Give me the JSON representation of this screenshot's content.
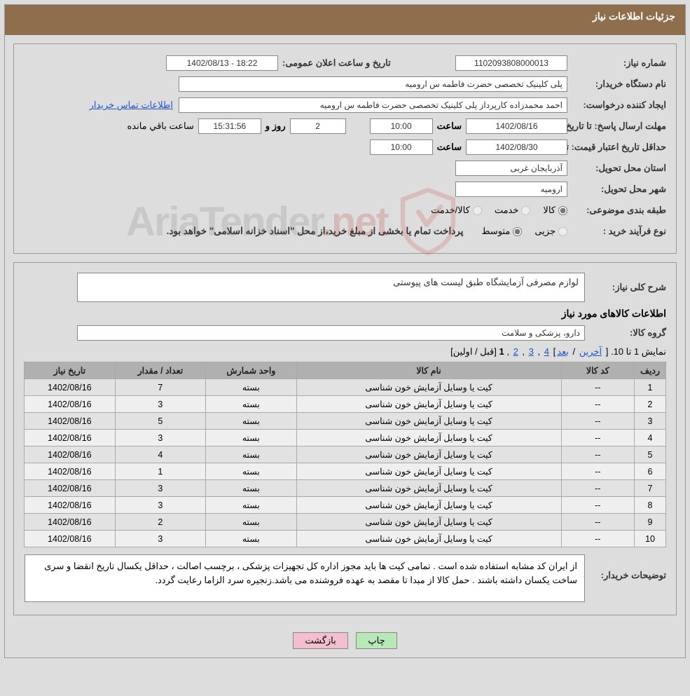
{
  "colors": {
    "header_bg": "#8f6e4d",
    "page_bg": "#dddddd",
    "border": "#999999",
    "input_bg": "#ffffff",
    "link": "#2255cc",
    "th_bg": "#b0b0b0",
    "row_even": "#efefef",
    "row_odd": "#e2e2e2",
    "btn_print": "#b8e8b8",
    "btn_back": "#f2bfcf",
    "watermark_accent": "#b33333"
  },
  "header": {
    "title": "جزئیات اطلاعات نیاز"
  },
  "info": {
    "need_no_label": "شماره نیاز:",
    "need_no": "1102093808000013",
    "announce_label": "تاریخ و ساعت اعلان عمومی:",
    "announce": "18:22 - 1402/08/13",
    "buyer_org_label": "نام دستگاه خریدار:",
    "buyer_org": "پلی کلینیک تخصصی حضرت فاطمه  س  ارومیه",
    "requester_label": "ایجاد کننده درخواست:",
    "requester": "احمد محمدزاده کارپرداز پلی کلینیک تخصصی حضرت فاطمه  س  ارومیه",
    "contact_link": "اطلاعات تماس خریدار",
    "deadline_label": "مهلت ارسال پاسخ: تا تاریخ:",
    "deadline_date": "1402/08/16",
    "hour_label": "ساعت",
    "deadline_hour": "10:00",
    "days_and_label": "روز و",
    "days_remaining": "2",
    "countdown": "15:31:56",
    "remaining_label": "ساعت باقي مانده",
    "validity_label": "حداقل تاریخ اعتبار قیمت: تا تاریخ:",
    "validity_date": "1402/08/30",
    "validity_hour": "10:00",
    "province_label": "استان محل تحویل:",
    "province": "آذربایجان غربی",
    "city_label": "شهر محل تحویل:",
    "city": "ارومیه",
    "class_label": "طبقه بندی موضوعی:",
    "class_goods": "کالا",
    "class_service": "خدمت",
    "class_both": "کالا/خدمت",
    "proc_type_label": "نوع فرآیند خرید :",
    "proc_minor": "جزیی",
    "proc_medium": "متوسط",
    "proc_note": "پرداخت تمام یا بخشی از مبلغ خرید،از محل \"اسناد خزانه اسلامی\" خواهد بود."
  },
  "desc": {
    "general_label": "شرح کلی نیاز:",
    "general_text": "لوازم مصرفی آزمایشگاه طبق لیست های پیوستی",
    "items_title": "اطلاعات کالاهای مورد نیاز",
    "group_label": "گروه کالا:",
    "group": "دارو، پزشکی و سلامت"
  },
  "pager": {
    "prefix": "نمایش 1 تا 10. ",
    "last": "آخرین",
    "next": "بعد",
    "p4": "4",
    "p3": "3",
    "p2": "2",
    "p1": "1",
    "prev": "قبل",
    "first": "اولین"
  },
  "table": {
    "headers": {
      "idx": "ردیف",
      "code": "کد کالا",
      "name": "نام کالا",
      "unit": "واحد شمارش",
      "qty": "تعداد / مقدار",
      "date": "تاریخ نیاز"
    },
    "rows": [
      {
        "idx": "1",
        "code": "--",
        "name": "کیت یا وسایل آزمایش خون شناسی",
        "unit": "بسته",
        "qty": "7",
        "date": "1402/08/16"
      },
      {
        "idx": "2",
        "code": "--",
        "name": "کیت یا وسایل آزمایش خون شناسی",
        "unit": "بسته",
        "qty": "3",
        "date": "1402/08/16"
      },
      {
        "idx": "3",
        "code": "--",
        "name": "کیت یا وسایل آزمایش خون شناسی",
        "unit": "بسته",
        "qty": "5",
        "date": "1402/08/16"
      },
      {
        "idx": "4",
        "code": "--",
        "name": "کیت یا وسایل آزمایش خون شناسی",
        "unit": "بسته",
        "qty": "3",
        "date": "1402/08/16"
      },
      {
        "idx": "5",
        "code": "--",
        "name": "کیت یا وسایل آزمایش خون شناسی",
        "unit": "بسته",
        "qty": "4",
        "date": "1402/08/16"
      },
      {
        "idx": "6",
        "code": "--",
        "name": "کیت یا وسایل آزمایش خون شناسی",
        "unit": "بسته",
        "qty": "1",
        "date": "1402/08/16"
      },
      {
        "idx": "7",
        "code": "--",
        "name": "کیت یا وسایل آزمایش خون شناسی",
        "unit": "بسته",
        "qty": "3",
        "date": "1402/08/16"
      },
      {
        "idx": "8",
        "code": "--",
        "name": "کیت یا وسایل آزمایش خون شناسی",
        "unit": "بسته",
        "qty": "3",
        "date": "1402/08/16"
      },
      {
        "idx": "9",
        "code": "--",
        "name": "کیت یا وسایل آزمایش خون شناسی",
        "unit": "بسته",
        "qty": "2",
        "date": "1402/08/16"
      },
      {
        "idx": "10",
        "code": "--",
        "name": "کیت یا وسایل آزمایش خون شناسی",
        "unit": "بسته",
        "qty": "3",
        "date": "1402/08/16"
      }
    ]
  },
  "buyer_note": {
    "label": "توضیحات خریدار:",
    "text": "از ایران کد مشابه استفاده شده است . تمامی کیت ها باید مجوز اداره کل تجهیزات پزشکی ، برچسب اصالت  ، حداقل یکسال تاریخ انقضا و سری ساخت یکسان داشته باشند . حمل کالا از مبدا تا مقصد به عهده فروشنده می باشد.زنجیره سرد الزاما رعایت گردد."
  },
  "buttons": {
    "print": "چاپ",
    "back": "بازگشت"
  },
  "watermark": {
    "text1": "AriaTender",
    "text2": ".net"
  }
}
